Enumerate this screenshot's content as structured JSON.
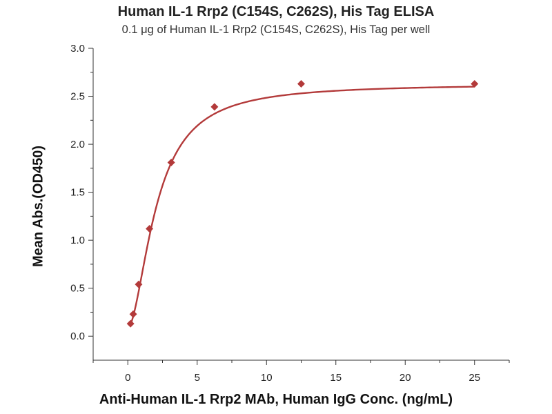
{
  "chart_data": {
    "type": "scatter",
    "title": "Human IL-1 Rrp2 (C154S, C262S), His Tag ELISA",
    "subtitle": "0.1 μg of Human IL-1 Rrp2 (C154S, C262S), His Tag per well",
    "xlabel": "Anti-Human IL-1 Rrp2 MAb, Human IgG Conc. (ng/mL)",
    "ylabel": "Mean Abs.(OD450)",
    "xlim": [
      -2.5,
      27.5
    ],
    "ylim": [
      -0.25,
      3.0
    ],
    "xticks": [
      0,
      5,
      10,
      15,
      20,
      25
    ],
    "yticks": [
      0.0,
      0.5,
      1.0,
      1.5,
      2.0,
      2.5,
      3.0
    ],
    "xtick_labels": [
      "0",
      "5",
      "10",
      "15",
      "20",
      "25"
    ],
    "ytick_labels": [
      "0.0",
      "0.5",
      "1.0",
      "1.5",
      "2.0",
      "2.5",
      "3.0"
    ],
    "grid": false,
    "color": "#b33a3a",
    "series": [
      {
        "x": [
          0.195,
          0.39,
          0.78,
          1.56,
          3.13,
          6.25,
          12.5,
          25
        ],
        "y": [
          0.13,
          0.23,
          0.54,
          1.12,
          1.81,
          2.39,
          2.63,
          2.63
        ],
        "marker": "diamond",
        "fit": "four-parameter logistic curve"
      }
    ]
  }
}
